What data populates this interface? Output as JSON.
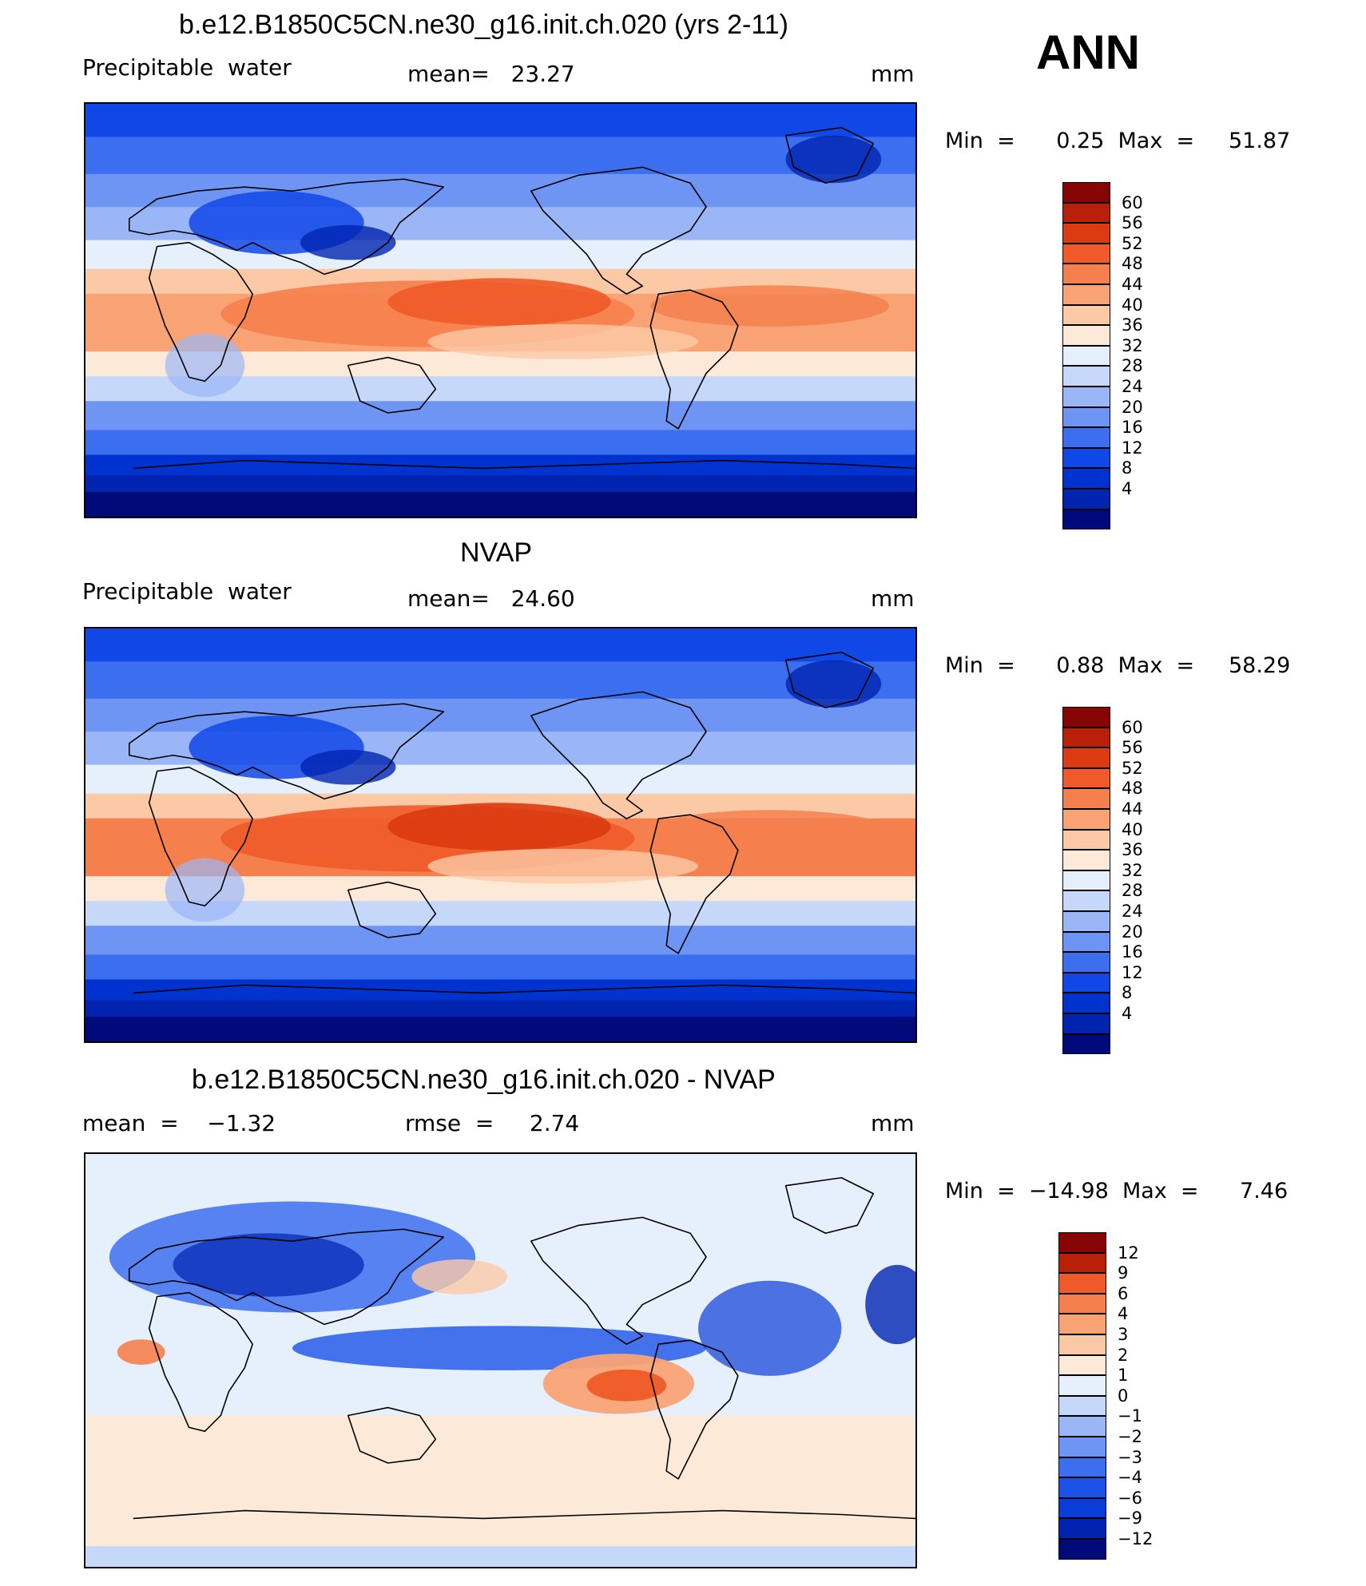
{
  "season": "ANN",
  "colors": {
    "abs_scale": [
      "#000a7a",
      "#0024b0",
      "#0032d0",
      "#1048e8",
      "#3c6ef0",
      "#6f95f4",
      "#9bb6f6",
      "#c6d8fa",
      "#e6effc",
      "#fde9d8",
      "#fbc9a6",
      "#f9a375",
      "#f5804d",
      "#ef5a28",
      "#dc3a10",
      "#b8200a",
      "#860505"
    ],
    "diff_scale": [
      "#000a7a",
      "#0024b0",
      "#0a3cd8",
      "#1c52e8",
      "#3c6ef0",
      "#6f95f4",
      "#9bb6f6",
      "#c6d8fa",
      "#e6effc",
      "#fde9d8",
      "#fbc9a6",
      "#f9a375",
      "#f5804d",
      "#ef5a28",
      "#b8200a",
      "#860505"
    ],
    "land_outline": "#000000"
  },
  "panels": [
    {
      "title": "b.e12.B1850C5CN.ne30_g16.init.ch.020 (yrs 2-11)",
      "variable": "Precipitable  water",
      "stat": "mean=   23.27",
      "units": "mm",
      "minmax": "Min  =      0.25  Max  =     51.87"
    },
    {
      "title": "NVAP",
      "variable": "Precipitable  water",
      "stat": "mean=   24.60",
      "units": "mm",
      "minmax": "Min  =      0.88  Max  =     58.29"
    },
    {
      "title": "b.e12.B1850C5CN.ne30_g16.init.ch.020 - NVAP",
      "stat_left": "mean  =    −1.32",
      "stat_mid": "rmse  =     2.74",
      "units": "mm",
      "minmax": "Min  =  −14.98  Max  =      7.46"
    }
  ],
  "colorbars": {
    "abs_labels": [
      "60",
      "56",
      "52",
      "48",
      "44",
      "40",
      "36",
      "32",
      "28",
      "24",
      "20",
      "16",
      "12",
      "8",
      "4"
    ],
    "diff_labels": [
      "12",
      "9",
      "6",
      "4",
      "3",
      "2",
      "1",
      "0",
      "−1",
      "−2",
      "−3",
      "−4",
      "−6",
      "−9",
      "−12"
    ]
  }
}
